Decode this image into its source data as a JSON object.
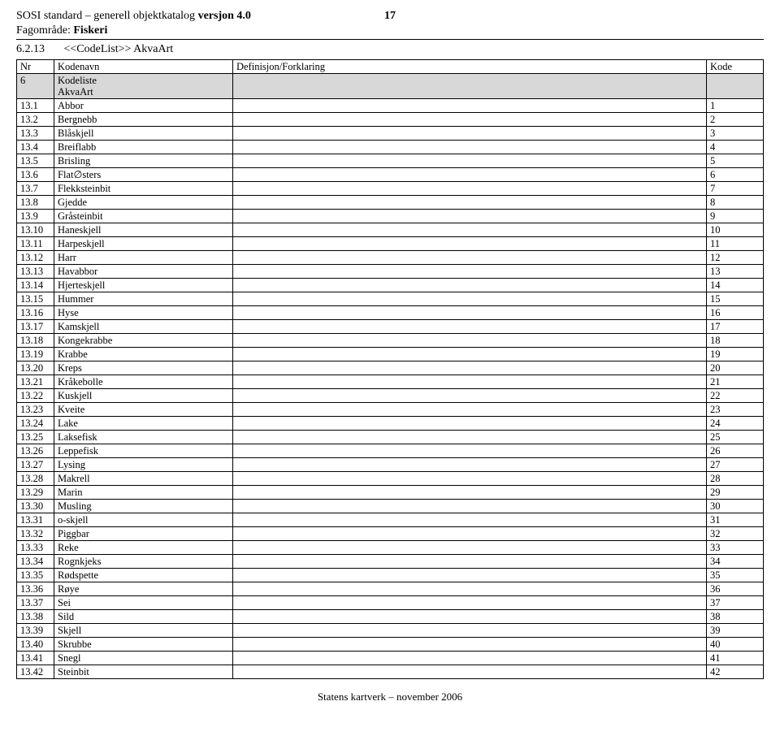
{
  "header": {
    "title_prefix": "SOSI standard – generell objektkatalog ",
    "version_label": "versjon 4.0",
    "page_number": "17",
    "domain_label": "Fagområde: ",
    "domain_value": "Fiskeri"
  },
  "section": {
    "number": "6.2.13",
    "stereotype": "<<CodeList>>",
    "name": "AkvaArt"
  },
  "table": {
    "headers": {
      "nr": "Nr",
      "kodenavn": "Kodenavn",
      "def": "Definisjon/Forklaring",
      "kode": "Kode"
    },
    "shade_row": {
      "nr": "6",
      "kodenavn_l1": "Kodeliste",
      "kodenavn_l2": "AkvaArt",
      "def": "",
      "kode": ""
    },
    "rows": [
      {
        "nr": "13.1",
        "kodenavn": "Abbor",
        "def": "",
        "kode": "1"
      },
      {
        "nr": "13.2",
        "kodenavn": "Bergnebb",
        "def": "",
        "kode": "2"
      },
      {
        "nr": "13.3",
        "kodenavn": "Blåskjell",
        "def": "",
        "kode": "3"
      },
      {
        "nr": "13.4",
        "kodenavn": "Breiflabb",
        "def": "",
        "kode": "4"
      },
      {
        "nr": "13.5",
        "kodenavn": "Brisling",
        "def": "",
        "kode": "5"
      },
      {
        "nr": "13.6",
        "kodenavn": "Flat∅sters",
        "def": "",
        "kode": "6"
      },
      {
        "nr": "13.7",
        "kodenavn": "Flekksteinbit",
        "def": "",
        "kode": "7"
      },
      {
        "nr": "13.8",
        "kodenavn": "Gjedde",
        "def": "",
        "kode": "8"
      },
      {
        "nr": "13.9",
        "kodenavn": "Gråsteinbit",
        "def": "",
        "kode": "9"
      },
      {
        "nr": "13.10",
        "kodenavn": "Haneskjell",
        "def": "",
        "kode": "10"
      },
      {
        "nr": "13.11",
        "kodenavn": "Harpeskjell",
        "def": "",
        "kode": "11"
      },
      {
        "nr": "13.12",
        "kodenavn": "Harr",
        "def": "",
        "kode": "12"
      },
      {
        "nr": "13.13",
        "kodenavn": "Havabbor",
        "def": "",
        "kode": "13"
      },
      {
        "nr": "13.14",
        "kodenavn": "Hjerteskjell",
        "def": "",
        "kode": "14"
      },
      {
        "nr": "13.15",
        "kodenavn": "Hummer",
        "def": "",
        "kode": "15"
      },
      {
        "nr": "13.16",
        "kodenavn": "Hyse",
        "def": "",
        "kode": "16"
      },
      {
        "nr": "13.17",
        "kodenavn": "Kamskjell",
        "def": "",
        "kode": "17"
      },
      {
        "nr": "13.18",
        "kodenavn": "Kongekrabbe",
        "def": "",
        "kode": "18"
      },
      {
        "nr": "13.19",
        "kodenavn": "Krabbe",
        "def": "",
        "kode": "19"
      },
      {
        "nr": "13.20",
        "kodenavn": "Kreps",
        "def": "",
        "kode": "20"
      },
      {
        "nr": "13.21",
        "kodenavn": "Kråkebolle",
        "def": "",
        "kode": "21"
      },
      {
        "nr": "13.22",
        "kodenavn": "Kuskjell",
        "def": "",
        "kode": "22"
      },
      {
        "nr": "13.23",
        "kodenavn": "Kveite",
        "def": "",
        "kode": "23"
      },
      {
        "nr": "13.24",
        "kodenavn": "Lake",
        "def": "",
        "kode": "24"
      },
      {
        "nr": "13.25",
        "kodenavn": "Laksefisk",
        "def": "",
        "kode": "25"
      },
      {
        "nr": "13.26",
        "kodenavn": "Leppefisk",
        "def": "",
        "kode": "26"
      },
      {
        "nr": "13.27",
        "kodenavn": "Lysing",
        "def": "",
        "kode": "27"
      },
      {
        "nr": "13.28",
        "kodenavn": "Makrell",
        "def": "",
        "kode": "28"
      },
      {
        "nr": "13.29",
        "kodenavn": "Marin",
        "def": "",
        "kode": "29"
      },
      {
        "nr": "13.30",
        "kodenavn": "Musling",
        "def": "",
        "kode": "30"
      },
      {
        "nr": "13.31",
        "kodenavn": "o-skjell",
        "def": "",
        "kode": "31"
      },
      {
        "nr": "13.32",
        "kodenavn": "Piggbar",
        "def": "",
        "kode": "32"
      },
      {
        "nr": "13.33",
        "kodenavn": "Reke",
        "def": "",
        "kode": "33"
      },
      {
        "nr": "13.34",
        "kodenavn": "Rognkjeks",
        "def": "",
        "kode": "34"
      },
      {
        "nr": "13.35",
        "kodenavn": "Rødspette",
        "def": "",
        "kode": "35"
      },
      {
        "nr": "13.36",
        "kodenavn": "Røye",
        "def": "",
        "kode": "36"
      },
      {
        "nr": "13.37",
        "kodenavn": "Sei",
        "def": "",
        "kode": "37"
      },
      {
        "nr": "13.38",
        "kodenavn": "Sild",
        "def": "",
        "kode": "38"
      },
      {
        "nr": "13.39",
        "kodenavn": "Skjell",
        "def": "",
        "kode": "39"
      },
      {
        "nr": "13.40",
        "kodenavn": "Skrubbe",
        "def": "",
        "kode": "40"
      },
      {
        "nr": "13.41",
        "kodenavn": "Snegl",
        "def": "",
        "kode": "41"
      },
      {
        "nr": "13.42",
        "kodenavn": "Steinbit",
        "def": "",
        "kode": "42"
      }
    ]
  },
  "footer": {
    "text": "Statens kartverk – november 2006"
  }
}
